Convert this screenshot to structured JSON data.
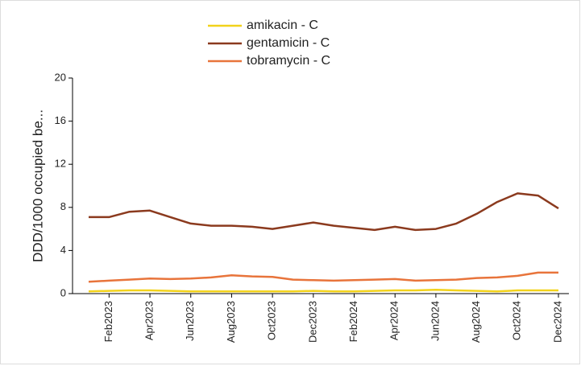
{
  "chart_data": {
    "type": "line",
    "ylabel": "DDD/1000  occupied be...",
    "categories": [
      null,
      "Feb2023",
      null,
      "Apr2023",
      null,
      "Jun2023",
      null,
      "Aug2023",
      null,
      "Oct2023",
      null,
      "Dec2023",
      null,
      "Feb2024",
      null,
      "Apr2024",
      null,
      "Jun2024",
      null,
      "Aug2024",
      null,
      "Oct2024",
      null,
      "Dec2024"
    ],
    "series": [
      {
        "name": "amikacin - C",
        "color": "#f2d21b",
        "values": [
          0.2,
          0.25,
          0.3,
          0.3,
          0.25,
          0.2,
          0.2,
          0.2,
          0.2,
          0.2,
          0.2,
          0.25,
          0.2,
          0.2,
          0.25,
          0.3,
          0.3,
          0.35,
          0.3,
          0.25,
          0.2,
          0.3,
          0.3,
          0.3
        ]
      },
      {
        "name": "gentamicin - C",
        "color": "#8b3a1e",
        "values": [
          7.1,
          7.1,
          7.6,
          7.7,
          7.1,
          6.5,
          6.3,
          6.3,
          6.2,
          6.0,
          6.3,
          6.6,
          6.3,
          6.1,
          5.9,
          6.2,
          5.9,
          6.0,
          6.5,
          7.4,
          8.5,
          9.3,
          9.1,
          7.9
        ]
      },
      {
        "name": "tobramycin - C",
        "color": "#e8743b",
        "values": [
          1.1,
          1.2,
          1.3,
          1.4,
          1.35,
          1.4,
          1.5,
          1.7,
          1.6,
          1.55,
          1.3,
          1.25,
          1.2,
          1.25,
          1.3,
          1.35,
          1.2,
          1.25,
          1.3,
          1.45,
          1.5,
          1.65,
          1.95,
          1.95
        ]
      }
    ],
    "ylim": [
      0,
      20
    ],
    "yticks": [
      0,
      4,
      8,
      12,
      16,
      20
    ],
    "grid": false,
    "legend": "top"
  }
}
